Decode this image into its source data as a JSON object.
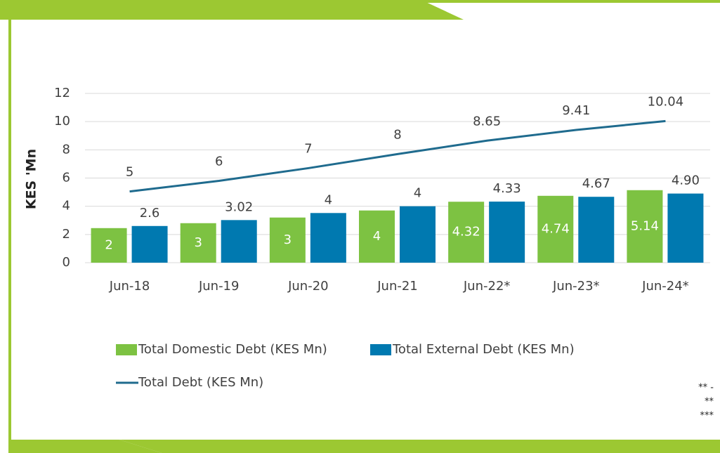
{
  "chart_data": {
    "type": "bar_line",
    "ylabel": "KES 'Mn",
    "categories": [
      "Jun-18",
      "Jun-19",
      "Jun-20",
      "Jun-21",
      "Jun-22*",
      "Jun-23*",
      "Jun-24*"
    ],
    "series": [
      {
        "name": "Total Domestic Debt (KES Mn)",
        "color": "#7dc242",
        "kind": "bar",
        "values": [
          2.45,
          2.8,
          3.2,
          3.7,
          4.32,
          4.74,
          5.14
        ],
        "value_labels": [
          "2",
          "3",
          "3",
          "4",
          "4.32",
          "4.74",
          "5.14"
        ]
      },
      {
        "name": "Total External Debt (KES Mn)",
        "color": "#0079b0",
        "kind": "bar",
        "values": [
          2.6,
          3.02,
          3.52,
          4,
          4.33,
          4.67,
          4.9
        ],
        "value_labels": [
          "2.6",
          "3.02",
          "4",
          "4",
          "4.33",
          "4.67",
          "4.90"
        ]
      },
      {
        "name": "Total Debt (KES Mn)",
        "color": "#1f6b8e",
        "kind": "line",
        "values": [
          5.05,
          5.8,
          6.7,
          7.7,
          8.65,
          9.41,
          10.04
        ],
        "value_labels": [
          "5",
          "6",
          "7",
          "8",
          "8.65",
          "9.41",
          "10.04"
        ]
      }
    ],
    "ylim": [
      0,
      12
    ],
    "yticks": [
      0,
      2,
      4,
      6,
      8,
      10,
      12
    ],
    "grid": true,
    "footnotes": [
      "** -",
      "**",
      "***"
    ]
  }
}
